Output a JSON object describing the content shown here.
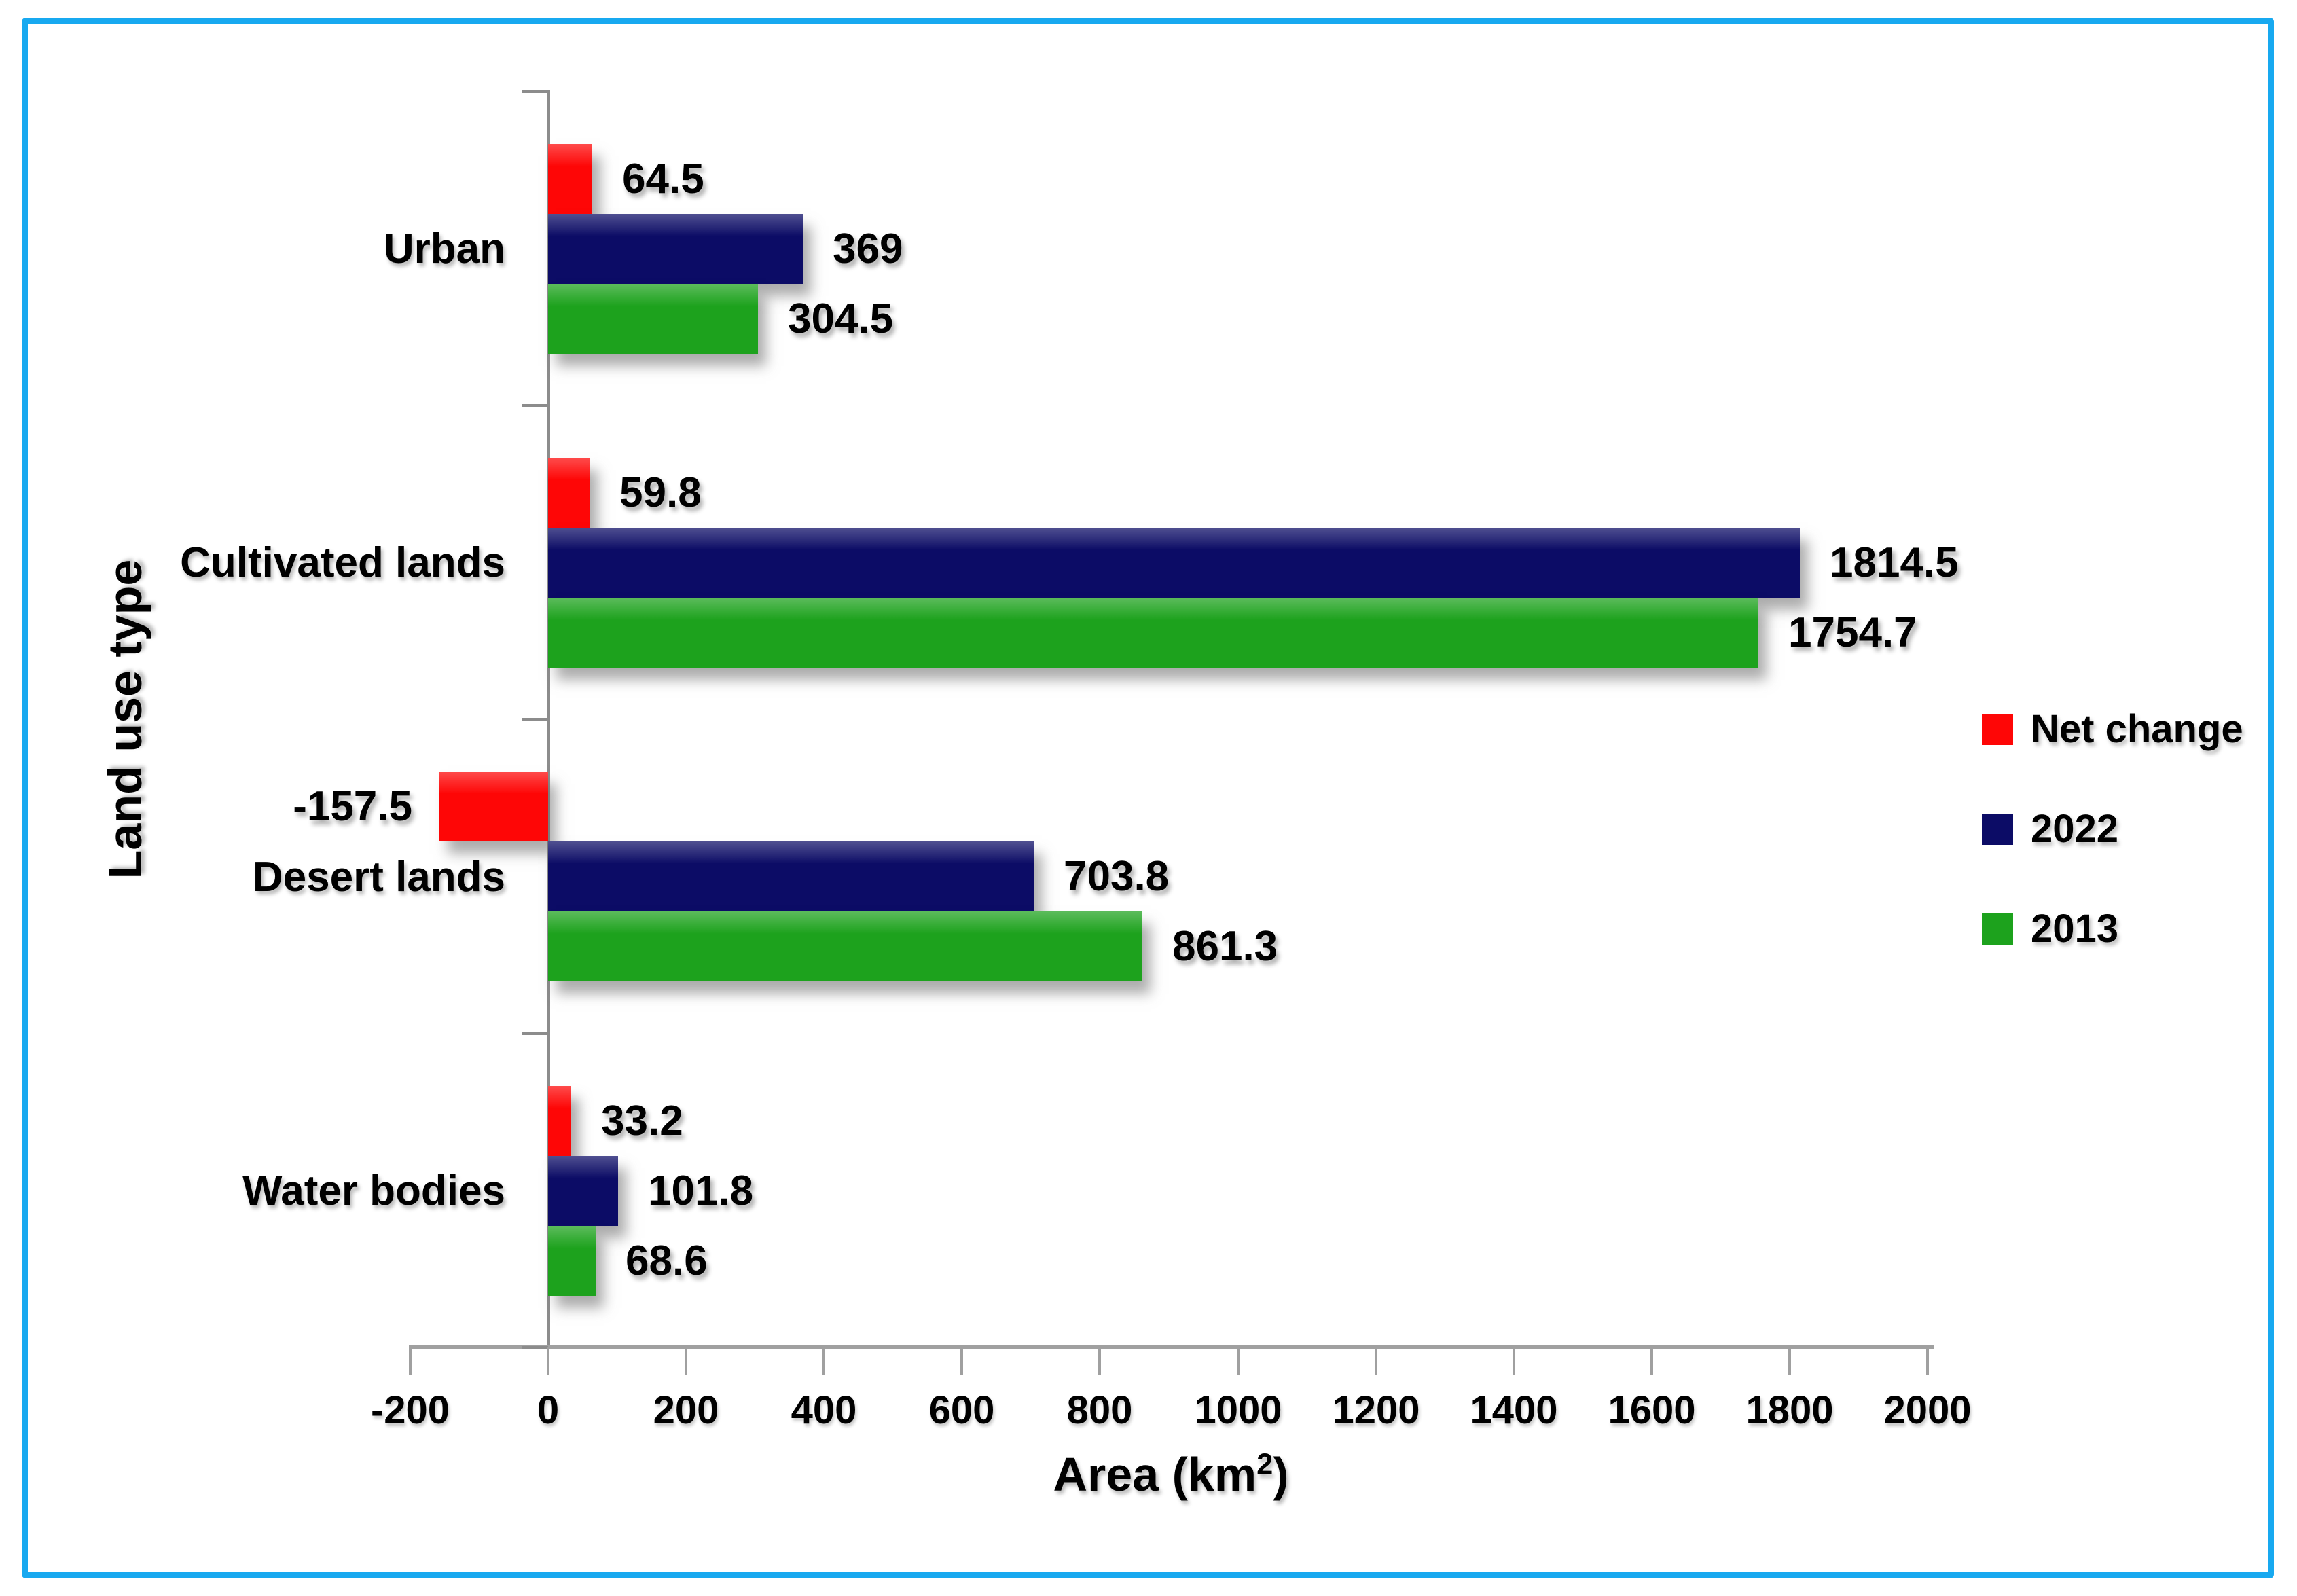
{
  "figure": {
    "border_color": "#18a9f0",
    "background_color": "#ffffff",
    "axis_color": "#9b9b9b"
  },
  "chart_data": {
    "type": "bar",
    "orientation": "horizontal",
    "title": "",
    "categories": [
      "Urban",
      "Cultivated lands",
      "Desert lands",
      "Water bodies"
    ],
    "series": [
      {
        "name": "Net change",
        "color": "#fe0606",
        "values": [
          64.5,
          59.8,
          -157.5,
          33.2
        ],
        "labels": [
          "64.5",
          "59.8",
          "-157.5",
          "33.2"
        ]
      },
      {
        "name": "2022",
        "color": "#0c0c66",
        "values": [
          369,
          1814.5,
          703.8,
          101.8
        ],
        "labels": [
          "369",
          "1814.5",
          "703.8",
          "101.8"
        ]
      },
      {
        "name": "2013",
        "color": "#1da21d",
        "values": [
          304.5,
          1754.7,
          861.3,
          68.6
        ],
        "labels": [
          "304.5",
          "1754.7",
          "861.3",
          "68.6"
        ]
      }
    ],
    "xlabel": "Area (km²)",
    "xlabel_prefix": "Area (km",
    "xlabel_sup": "2",
    "xlabel_suffix": ")",
    "ylabel": "Land use type",
    "xlim": [
      -200,
      2000
    ],
    "x_ticks": [
      -200,
      0,
      200,
      400,
      600,
      800,
      1000,
      1200,
      1400,
      1600,
      1800,
      2000
    ],
    "x_tick_labels": [
      "-200",
      "0",
      "200",
      "400",
      "600",
      "800",
      "1000",
      "1200",
      "1400",
      "1600",
      "1800",
      "2000"
    ],
    "grid": "off",
    "legend_position": "right"
  }
}
